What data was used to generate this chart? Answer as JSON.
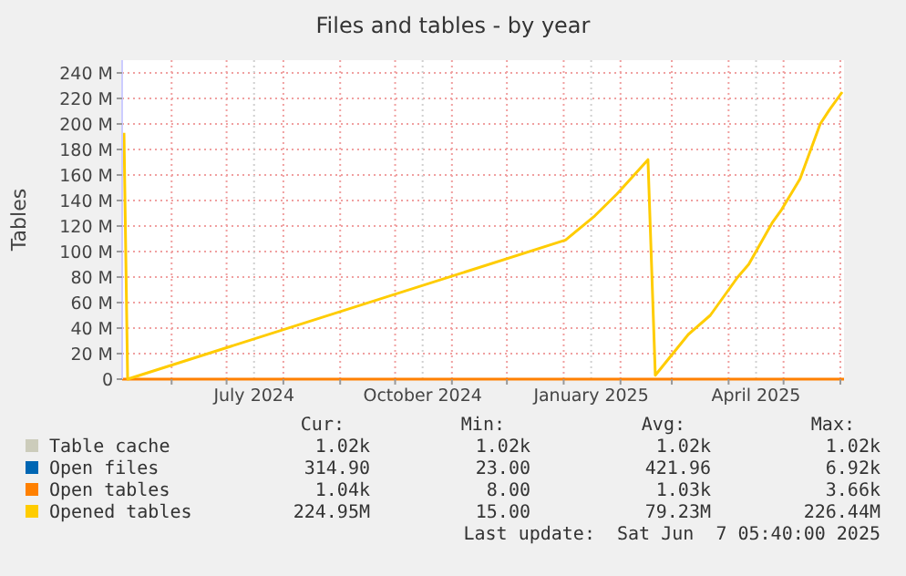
{
  "chart_data": {
    "type": "line",
    "title": "Files and tables - by year",
    "ylabel": "Tables",
    "xlim": [
      "2024-05-05",
      "2025-06-03"
    ],
    "ylim": [
      0,
      250
    ],
    "xticks": [
      {
        "value": "2024-06-01",
        "label": null
      },
      {
        "value": "2024-07-01",
        "label": null
      },
      {
        "value": "2024-07-16",
        "label": "July 2024"
      },
      {
        "value": "2024-08-01",
        "label": null
      },
      {
        "value": "2024-09-01",
        "label": null
      },
      {
        "value": "2024-10-01",
        "label": null
      },
      {
        "value": "2024-10-16",
        "label": "October 2024"
      },
      {
        "value": "2024-11-01",
        "label": null
      },
      {
        "value": "2024-12-01",
        "label": null
      },
      {
        "value": "2025-01-01",
        "label": null
      },
      {
        "value": "2025-01-16",
        "label": "January 2025"
      },
      {
        "value": "2025-02-01",
        "label": null
      },
      {
        "value": "2025-03-01",
        "label": null
      },
      {
        "value": "2025-04-01",
        "label": null
      },
      {
        "value": "2025-04-16",
        "label": "April 2025"
      },
      {
        "value": "2025-05-01",
        "label": null
      },
      {
        "value": "2025-06-01",
        "label": null
      }
    ],
    "yticks": [
      0,
      {
        "value": 20,
        "label": "20 M"
      },
      {
        "value": 40,
        "label": "40 M"
      },
      {
        "value": 60,
        "label": "60 M"
      },
      {
        "value": 80,
        "label": "80 M"
      },
      {
        "value": 100,
        "label": "100 M"
      },
      {
        "value": 120,
        "label": "120 M"
      },
      {
        "value": 140,
        "label": "140 M"
      },
      {
        "value": 160,
        "label": "160 M"
      },
      {
        "value": 180,
        "label": "180 M"
      },
      {
        "value": 200,
        "label": "200 M"
      },
      {
        "value": 220,
        "label": "220 M"
      },
      {
        "value": 240,
        "label": "240 M"
      }
    ],
    "grid": true,
    "legend": "bottom",
    "line_style": "solid",
    "series": [
      {
        "name": "Table cache",
        "color": "#ccccbb"
      },
      {
        "name": "Open files",
        "color": "#0066b3"
      },
      {
        "name": "Open tables",
        "color": "#ff8000",
        "x": [
          "2024-05-05",
          "2025-06-03"
        ],
        "values": [
          0,
          0
        ]
      },
      {
        "name": "Opened tables",
        "color": "#ffcc00",
        "x": [
          "2024-05-06",
          "2024-05-08",
          "2025-01-02",
          "2025-01-18",
          "2025-01-30",
          "2025-02-16",
          "2025-02-20",
          "2025-03-10",
          "2025-03-22",
          "2025-04-06",
          "2025-04-12",
          "2025-04-25",
          "2025-04-30",
          "2025-05-10",
          "2025-05-21",
          "2025-05-26",
          "2025-06-02"
        ],
        "values": [
          193,
          0,
          109,
          128,
          145,
          172,
          3,
          35,
          50,
          80,
          90,
          123,
          133,
          157,
          200,
          211,
          225
        ]
      }
    ],
    "annotations": [
      "Cur:",
      "Min:",
      "Avg:",
      "Max:",
      "1.02k",
      "1.02k",
      "1.02k",
      "1.02k",
      "314.90",
      "23.00",
      "421.96",
      "6.92k",
      "1.04k",
      "8.00",
      "1.03k",
      "3.66k",
      "224.95M",
      "15.00",
      "79.23M",
      "226.44M",
      "Last update:  Sat Jun  7 05:40:00 2025"
    ]
  }
}
